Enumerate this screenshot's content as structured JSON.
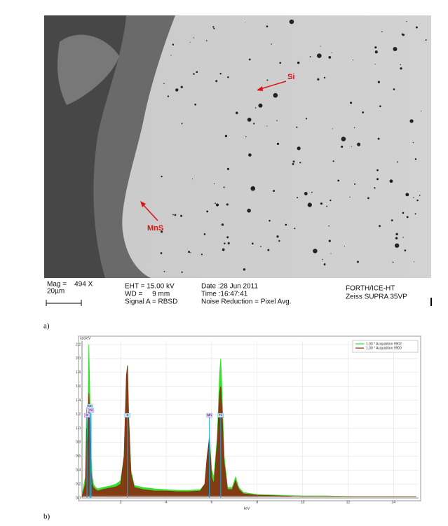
{
  "sem_panel": {
    "annotations": [
      "Si",
      "MnS"
    ],
    "info": {
      "mag": "Mag =    494 X",
      "scale": "20µm",
      "eht": "EHT = 15.00 kV",
      "wd": "WD =     9 mm",
      "signal": "Signal A = RBSD",
      "date": "Date :28 Jun 2011",
      "time": "Time :16:47:41",
      "noise": "Noise Reduction = Pixel Avg.",
      "lab": "FORTH/ICE-HT",
      "device": "Zeiss SUPRA 35VP"
    },
    "caption": "a)"
  },
  "chart_data": {
    "type": "line",
    "ylabel": "cps/eV",
    "xlabel": "keV",
    "caption": "b)",
    "x": [
      0.3,
      0.45,
      0.5,
      0.55,
      0.6,
      0.65,
      0.7,
      0.75,
      0.8,
      0.9,
      1.0,
      1.2,
      1.5,
      1.8,
      2.0,
      2.15,
      2.25,
      2.3,
      2.35,
      2.45,
      2.6,
      3.0,
      3.5,
      4.0,
      4.5,
      5.0,
      5.5,
      5.7,
      5.8,
      5.9,
      6.0,
      6.1,
      6.25,
      6.35,
      6.4,
      6.45,
      6.55,
      6.7,
      6.9,
      7.0,
      7.05,
      7.1,
      7.2,
      7.4,
      8,
      9,
      10,
      11,
      12,
      13,
      14,
      15
    ],
    "series": [
      {
        "name": "1.00 * Acquisition 9902",
        "color": "#33e02a",
        "values": [
          0.05,
          0.3,
          1.3,
          0.9,
          2.2,
          1.4,
          0.6,
          0.3,
          0.2,
          0.15,
          0.13,
          0.15,
          0.17,
          0.2,
          0.25,
          0.6,
          1.7,
          1.9,
          1.2,
          0.4,
          0.18,
          0.15,
          0.13,
          0.12,
          0.11,
          0.11,
          0.12,
          0.2,
          0.5,
          0.9,
          0.4,
          0.3,
          0.9,
          1.8,
          2.0,
          1.6,
          0.6,
          0.15,
          0.15,
          0.25,
          0.3,
          0.25,
          0.15,
          0.08,
          0.05,
          0.04,
          0.03,
          0.03,
          0.02,
          0.02,
          0.02,
          0.02
        ]
      },
      {
        "name": "1.00 * Acquisition 9900",
        "color": "#8b2a12",
        "values": [
          0.02,
          0.2,
          1.0,
          0.7,
          1.5,
          1.1,
          0.4,
          0.2,
          0.15,
          0.12,
          0.1,
          0.12,
          0.14,
          0.16,
          0.2,
          0.6,
          1.75,
          1.9,
          1.2,
          0.35,
          0.15,
          0.12,
          0.1,
          0.1,
          0.09,
          0.09,
          0.1,
          0.2,
          0.6,
          0.85,
          0.3,
          0.2,
          0.8,
          1.5,
          1.6,
          1.3,
          0.5,
          0.12,
          0.12,
          0.2,
          0.25,
          0.2,
          0.12,
          0.06,
          0.04,
          0.03,
          0.02,
          0.02,
          0.02,
          0.02,
          0.02,
          0.02
        ]
      }
    ],
    "peak_labels": [
      {
        "text": "O",
        "x": 0.52
      },
      {
        "text": "Mn",
        "x": 0.65
      },
      {
        "text": "Fe",
        "x": 0.7
      },
      {
        "text": "S",
        "x": 2.3
      },
      {
        "text": "Mn",
        "x": 5.9
      },
      {
        "text": "Fe",
        "x": 6.4
      }
    ],
    "xlim": [
      0.3,
      15.1
    ],
    "ylim": [
      0,
      2.25
    ],
    "xticks": [
      2,
      4,
      6,
      8,
      10,
      12,
      14
    ],
    "yticks": [
      {
        "value": 0,
        "label": "0.0"
      },
      0.2,
      0.4,
      0.6,
      0.8,
      {
        "value": 1,
        "label": "1.0"
      },
      1.2,
      1.4,
      1.6,
      1.8,
      {
        "value": 2,
        "label": "2.0"
      },
      2.2
    ],
    "grid": true,
    "legend": "upper right"
  }
}
